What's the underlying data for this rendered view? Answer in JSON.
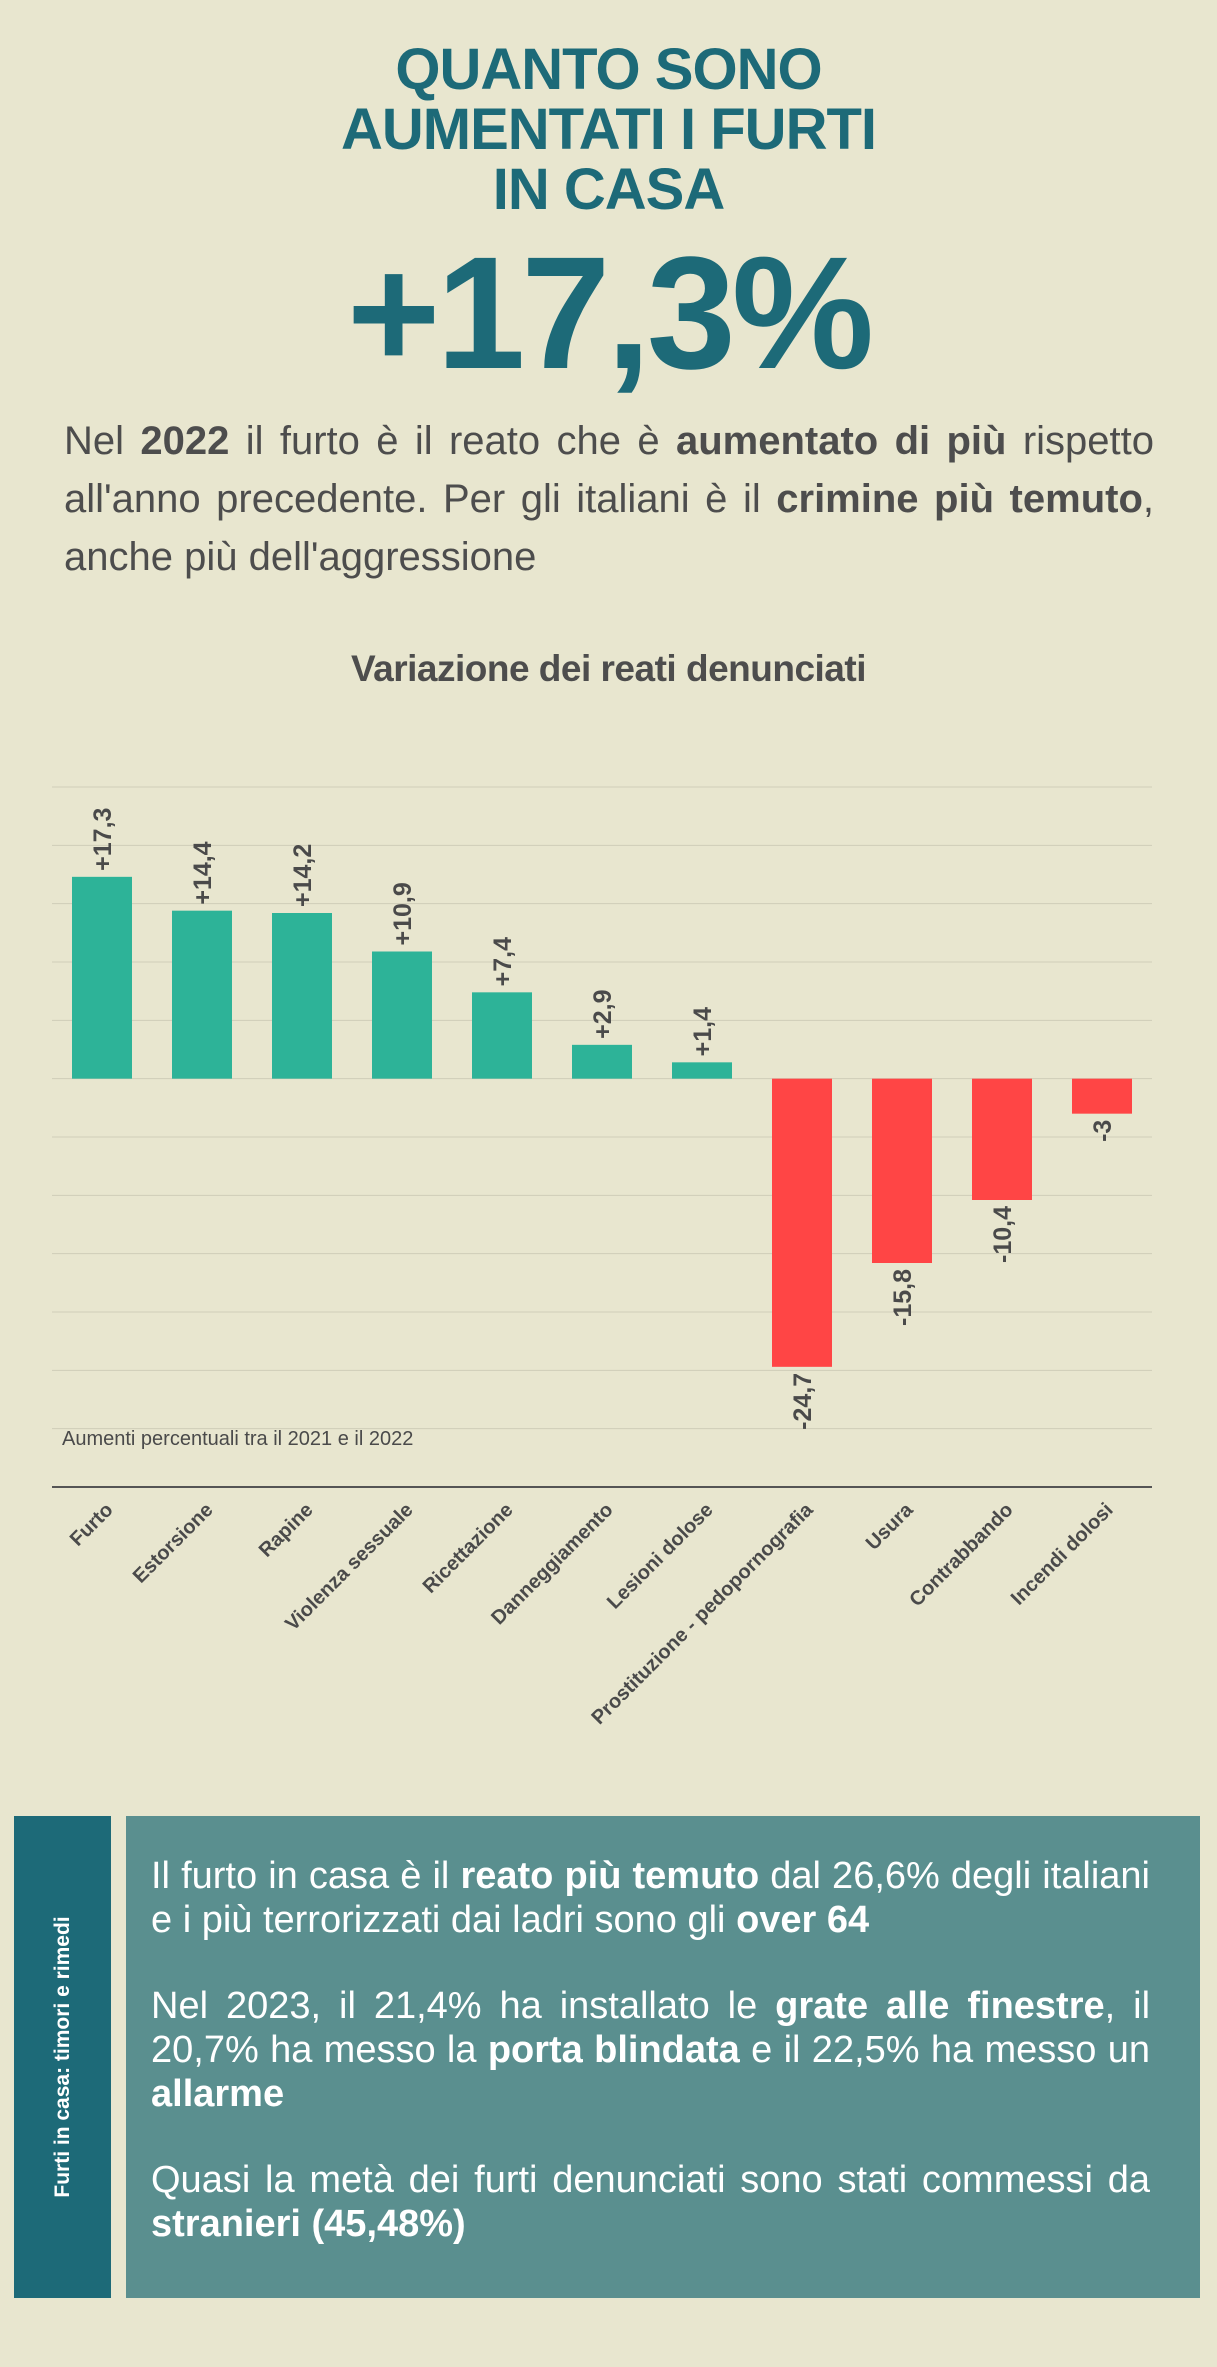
{
  "header": {
    "title_lines": [
      "QUANTO SONO",
      "AUMENTATI I FURTI",
      "IN CASA"
    ],
    "big_number": "+17,3%"
  },
  "intro": {
    "t1": "Nel ",
    "b1": "2022",
    "t2": " il furto è il reato che è ",
    "b2": "aumentato di più",
    "t3": " rispetto all'anno precedente. Per gli italiani è il ",
    "b3": "crimine più temuto",
    "t4": ", anche più dell'aggressione"
  },
  "chart_data": {
    "type": "bar",
    "title": "Variazione dei reati denunciati",
    "annotation": "Aumenti percentuali tra il 2021 e il 2022",
    "categories": [
      "Furto",
      "Estorsione",
      "Rapine",
      "Violenza sessuale",
      "Ricettazione",
      "Danneggiamento",
      "Lesioni dolose",
      "Prostituzione - pedopornografia",
      "Usura",
      "Contrabbando",
      "Incendi dolosi"
    ],
    "values": [
      17.3,
      14.4,
      14.2,
      10.9,
      7.4,
      2.9,
      1.4,
      -24.7,
      -15.8,
      -10.4,
      -3
    ],
    "data_labels": [
      "+17,3",
      "+14,4",
      "+14,2",
      "+10,9",
      "+7,4",
      "+2,9",
      "+1,4",
      "-24,7",
      "-15,8",
      "-10,4",
      "-3"
    ],
    "ylim": [
      -35,
      25
    ],
    "grid": true,
    "colors": {
      "positive": "#2db398",
      "negative": "#ff4545"
    }
  },
  "side_tab": {
    "label": "Furti in casa: timori e rimedi"
  },
  "info": {
    "p1": [
      {
        "text": "Il furto in casa è il ",
        "bold": false
      },
      {
        "text": "reato più temuto",
        "bold": true
      },
      {
        "text": " dal 26,6% degli italiani e i più terrorizzati dai ladri sono gli ",
        "bold": false
      },
      {
        "text": "over 64",
        "bold": true
      }
    ],
    "p2": [
      {
        "text": "Nel 2023, il 21,4% ha installato le ",
        "bold": false
      },
      {
        "text": "grate alle finestre",
        "bold": true
      },
      {
        "text": ", il 20,7% ha messo la ",
        "bold": false
      },
      {
        "text": "porta blindata",
        "bold": true
      },
      {
        "text": " e il 22,5% ha messo un ",
        "bold": false
      },
      {
        "text": "allarme",
        "bold": true
      }
    ],
    "p3": [
      {
        "text": "Quasi la metà dei furti denunciati sono stati commessi da ",
        "bold": false
      },
      {
        "text": "stranieri (45,48%)",
        "bold": true
      }
    ]
  }
}
